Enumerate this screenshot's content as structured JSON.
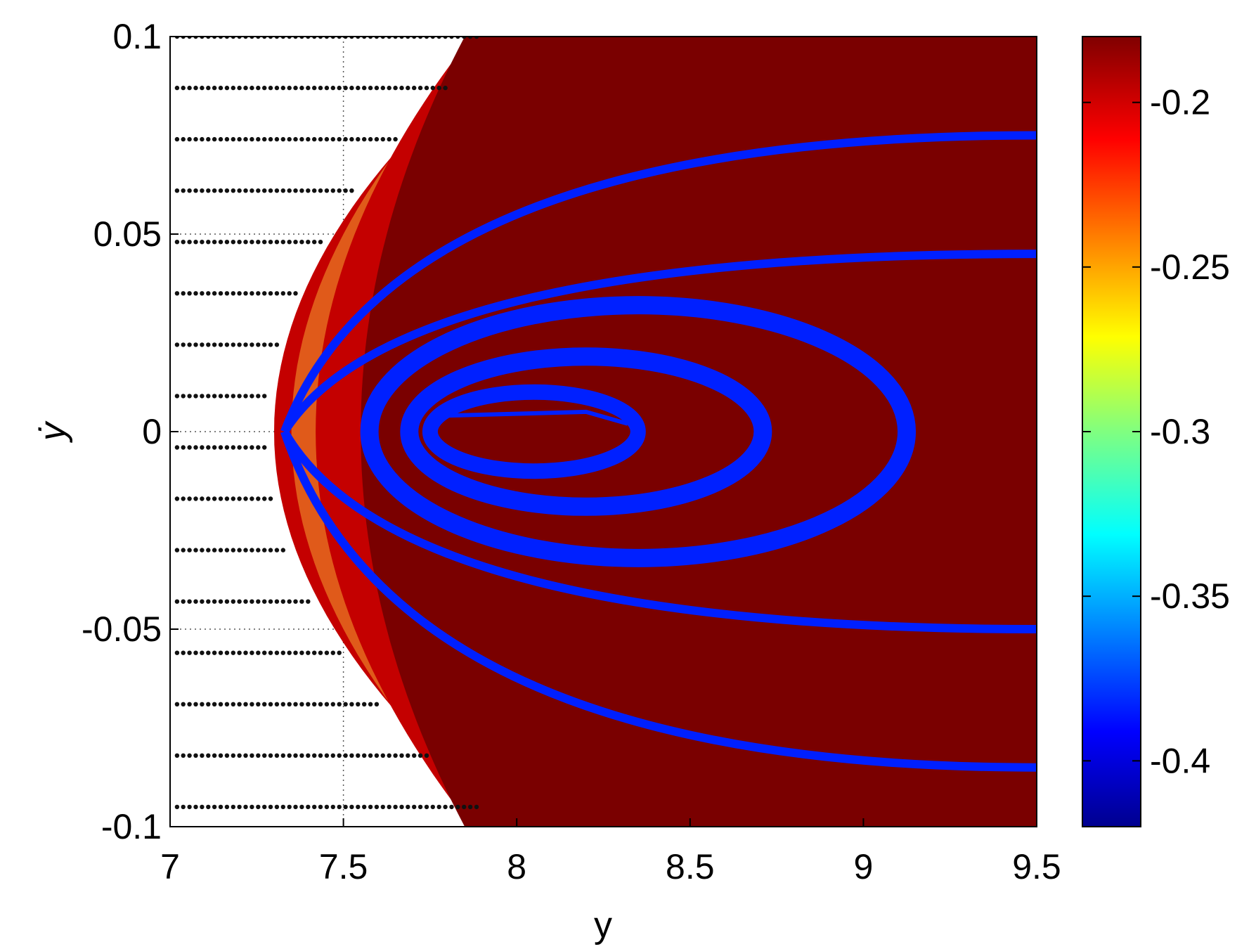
{
  "chart_data": {
    "type": "heatmap",
    "title": "",
    "xlabel": "y",
    "ylabel": "ẏ",
    "xlim": [
      7,
      9.5
    ],
    "ylim": [
      -0.1,
      0.1
    ],
    "xticks": [
      7,
      7.5,
      8,
      8.5,
      9,
      9.5
    ],
    "xtick_labels": [
      "7",
      "7.5",
      "8",
      "8.5",
      "9",
      "9.5"
    ],
    "yticks": [
      -0.1,
      -0.05,
      0,
      0.05,
      0.1
    ],
    "ytick_labels": [
      "-0.1",
      "-0.05",
      "0",
      "0.05",
      "0.1"
    ],
    "grid": "dotted, left region only",
    "colorbar": {
      "colormap": "jet",
      "range": [
        -0.42,
        -0.18
      ],
      "ticks": [
        -0.4,
        -0.35,
        -0.3,
        -0.25,
        -0.2
      ],
      "tick_labels": [
        "-0.4",
        "-0.35",
        "-0.3",
        "-0.25",
        "-0.2"
      ]
    },
    "regions": {
      "domain_boundary_left_x_at_center": 7.3,
      "background_value": -0.19,
      "outer_band_value": -0.22,
      "low_band_value": -0.25
    },
    "blue_bands": [
      {
        "value": -0.39,
        "shape": "spiral core",
        "center": [
          8.05,
          0.0
        ],
        "x_range": [
          7.75,
          8.35
        ],
        "half_height": 0.01
      },
      {
        "value": -0.39,
        "shape": "ellipse",
        "center": [
          8.2,
          0.0
        ],
        "x_range": [
          7.66,
          8.68
        ],
        "half_height": 0.019
      },
      {
        "value": -0.39,
        "shape": "ellipse",
        "center": [
          8.35,
          0.0
        ],
        "x_range": [
          7.55,
          9.1
        ],
        "half_height": 0.032
      },
      {
        "value": -0.39,
        "shape": "arc",
        "from": [
          7.33,
          0.0
        ],
        "to": [
          9.5,
          0.045
        ]
      },
      {
        "value": -0.39,
        "shape": "arc",
        "from": [
          7.33,
          0.0
        ],
        "to": [
          9.5,
          0.075
        ]
      },
      {
        "value": -0.39,
        "shape": "arc",
        "from": [
          7.33,
          0.0
        ],
        "to": [
          9.5,
          -0.05
        ]
      },
      {
        "value": -0.39,
        "shape": "arc",
        "from": [
          7.33,
          0.0
        ],
        "to": [
          9.5,
          -0.085
        ]
      }
    ],
    "marker_rows_y": [
      0.1,
      0.087,
      0.074,
      0.061,
      0.048,
      0.035,
      0.022,
      0.009,
      -0.004,
      -0.017,
      -0.03,
      -0.043,
      -0.056,
      -0.069,
      -0.082,
      -0.095
    ]
  },
  "colors": {
    "darkred": "#7a0000",
    "red": "#c40000",
    "orange": "#e05a1a",
    "blue": "#0020ff",
    "marker": "#111111"
  }
}
